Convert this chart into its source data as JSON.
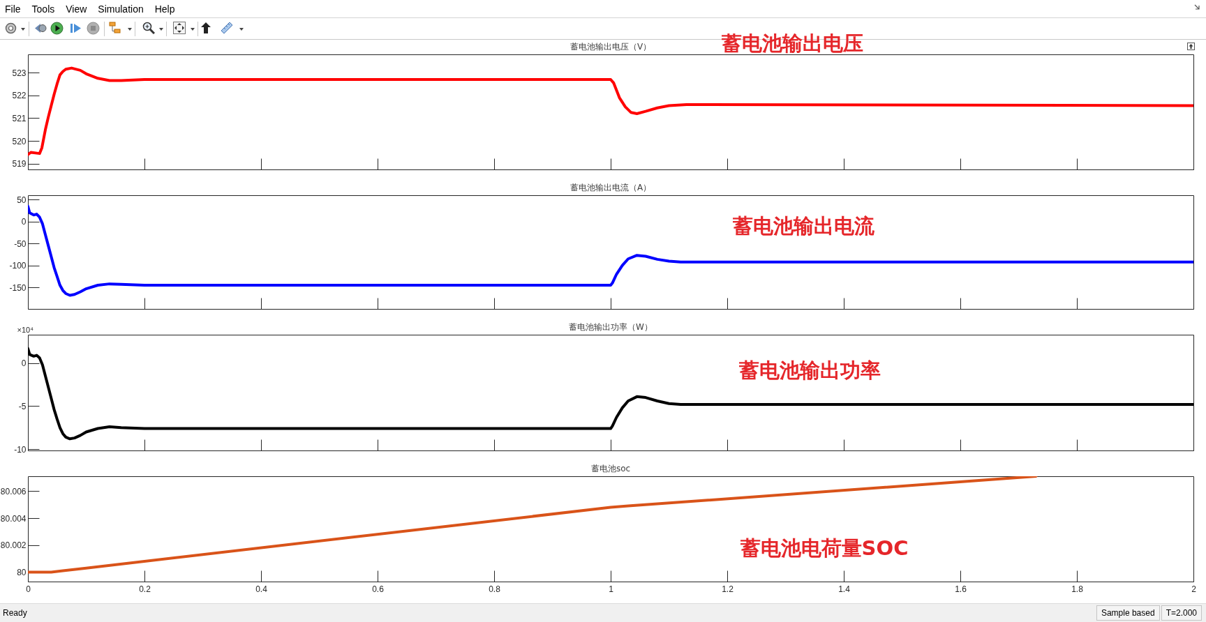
{
  "chart_data": [
    {
      "type": "line",
      "title": "蓄电池输出电压（V）",
      "x": [
        0,
        0.005,
        0.02,
        0.024,
        0.03,
        0.035,
        0.04,
        0.045,
        0.05,
        0.055,
        0.06,
        0.065,
        0.075,
        0.09,
        0.1,
        0.12,
        0.14,
        0.16,
        0.2,
        1,
        1.005,
        1.015,
        1.025,
        1.035,
        1.045,
        1.06,
        1.08,
        1.1,
        1.13,
        2
      ],
      "series": [
        {
          "color": "#ff0000",
          "values": [
            519.4,
            519.5,
            519.45,
            519.7,
            520.5,
            521.05,
            521.55,
            522.05,
            522.5,
            522.9,
            523.05,
            523.15,
            523.2,
            523.1,
            522.95,
            522.75,
            522.65,
            522.65,
            522.7,
            522.7,
            522.55,
            521.9,
            521.5,
            521.25,
            521.2,
            521.3,
            521.45,
            521.55,
            521.6,
            521.55
          ]
        }
      ],
      "xlim": [
        0,
        2
      ],
      "xticks": [
        0,
        0.2,
        0.4,
        0.6,
        0.8,
        1,
        1.2,
        1.4,
        1.6,
        1.8,
        2
      ],
      "ylim": [
        518.75,
        523.8
      ],
      "yticks": [
        519,
        520,
        521,
        522,
        523
      ],
      "tick_labels": "y",
      "annotations": [
        "蓄电池输出电压",
        "File",
        "Tools",
        "View",
        "Simulation",
        "Help"
      ]
    },
    {
      "type": "line",
      "title": "蓄电池输出电流（A）",
      "x": [
        0,
        0.003,
        0.01,
        0.015,
        0.02,
        0.025,
        0.03,
        0.035,
        0.04,
        0.045,
        0.05,
        0.055,
        0.06,
        0.065,
        0.072,
        0.08,
        0.09,
        0.1,
        0.12,
        0.14,
        0.16,
        0.2,
        1,
        1.003,
        1.01,
        1.02,
        1.03,
        1.045,
        1.06,
        1.08,
        1.1,
        1.12,
        2
      ],
      "series": [
        {
          "color": "#0000ff",
          "values": [
            35,
            20,
            15,
            17,
            10,
            -5,
            -30,
            -55,
            -80,
            -105,
            -125,
            -145,
            -157,
            -164,
            -168,
            -166,
            -160,
            -153,
            -145,
            -142,
            -143,
            -145,
            -145,
            -140,
            -120,
            -100,
            -85,
            -77,
            -79,
            -86,
            -90,
            -92,
            -92
          ]
        }
      ],
      "xlim": [
        0,
        2
      ],
      "xticks": [
        0,
        0.2,
        0.4,
        0.6,
        0.8,
        1,
        1.2,
        1.4,
        1.6,
        1.8,
        2
      ],
      "ylim": [
        -199,
        60
      ],
      "yticks": [
        -150,
        -100,
        -50,
        0,
        50
      ],
      "tick_labels": "y",
      "annotations": [
        "蓄电池输出电流"
      ]
    },
    {
      "type": "line",
      "title": "蓄电池输出功率（W）",
      "ylabel": "×10⁴",
      "x": [
        0,
        0.003,
        0.01,
        0.015,
        0.02,
        0.025,
        0.03,
        0.035,
        0.04,
        0.045,
        0.05,
        0.055,
        0.06,
        0.065,
        0.072,
        0.08,
        0.09,
        0.1,
        0.12,
        0.14,
        0.16,
        0.2,
        1,
        1.003,
        1.01,
        1.02,
        1.03,
        1.045,
        1.06,
        1.08,
        1.1,
        1.12,
        2
      ],
      "series": [
        {
          "color": "#000000",
          "values": [
            1.7,
            1.0,
            0.8,
            0.9,
            0.6,
            -0.2,
            -1.5,
            -2.8,
            -4.1,
            -5.4,
            -6.5,
            -7.5,
            -8.2,
            -8.6,
            -8.8,
            -8.7,
            -8.4,
            -8.0,
            -7.6,
            -7.4,
            -7.5,
            -7.6,
            -7.6,
            -7.3,
            -6.3,
            -5.2,
            -4.4,
            -3.9,
            -4.0,
            -4.4,
            -4.7,
            -4.8,
            -4.8
          ]
        }
      ],
      "xlim": [
        0,
        2
      ],
      "xticks": [
        0,
        0.2,
        0.4,
        0.6,
        0.8,
        1,
        1.2,
        1.4,
        1.6,
        1.8,
        2
      ],
      "ylim": [
        -10.15,
        3.3
      ],
      "yticks": [
        -10,
        -5,
        0
      ],
      "tick_labels": "y",
      "annotations": [
        "蓄电池输出功率"
      ]
    },
    {
      "type": "line",
      "title": "蓄电池soc",
      "x": [
        0,
        0.04,
        0.06,
        0.1,
        1,
        1.03,
        1.73
      ],
      "series": [
        {
          "color": "#d95319",
          "values": [
            80,
            80,
            80.0001,
            80.0003,
            80.0048,
            80.0049,
            80.0071
          ]
        }
      ],
      "xlim": [
        0,
        2
      ],
      "xticks": [
        0,
        0.2,
        0.4,
        0.6,
        0.8,
        1,
        1.2,
        1.4,
        1.6,
        1.8,
        2
      ],
      "ylim": [
        79.9993,
        80.0071
      ],
      "yticks": [
        80,
        80.002,
        80.004,
        80.006
      ],
      "annotations": [
        "蓄电池电荷量SOC",
        "Ready",
        "Sample based",
        "T=2.000"
      ]
    }
  ]
}
